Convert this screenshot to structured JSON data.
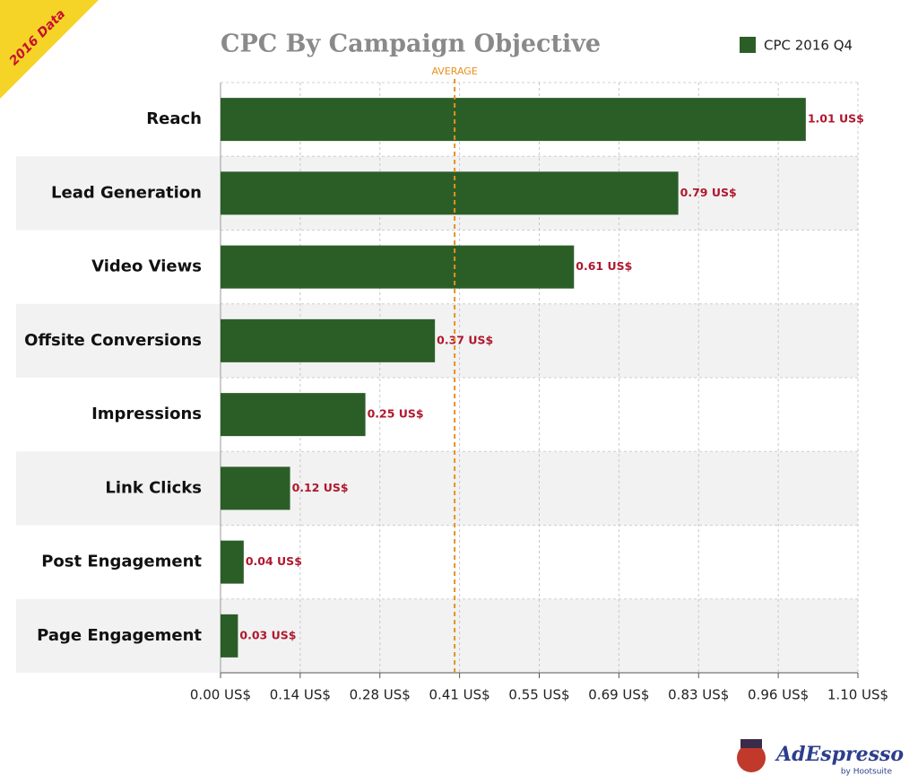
{
  "chart_data": {
    "type": "bar",
    "orientation": "horizontal",
    "title": "CPC By Campaign Objective",
    "categories": [
      "Reach",
      "Lead Generation",
      "Video Views",
      "Offsite Conversions",
      "Impressions",
      "Link Clicks",
      "Post Engagement",
      "Page Engagement"
    ],
    "series": [
      {
        "name": "CPC 2016 Q4",
        "color": "#2b5e27",
        "values": [
          1.01,
          0.79,
          0.61,
          0.37,
          0.25,
          0.12,
          0.04,
          0.03
        ],
        "value_labels": [
          "1.01 US$",
          "0.79 US$",
          "0.61 US$",
          "0.37 US$",
          "0.25 US$",
          "0.12 US$",
          "0.04 US$",
          "0.03 US$"
        ]
      }
    ],
    "xlim": [
      0,
      1.1
    ],
    "xticks": [
      {
        "value": 0,
        "label": "0.00 US$"
      },
      {
        "value": 0.1375,
        "label": "0.14 US$"
      },
      {
        "value": 0.275,
        "label": "0.28 US$"
      },
      {
        "value": 0.4125,
        "label": "0.41 US$"
      },
      {
        "value": 0.55,
        "label": "0.55 US$"
      },
      {
        "value": 0.6875,
        "label": "0.69 US$"
      },
      {
        "value": 0.825,
        "label": "0.83 US$"
      },
      {
        "value": 0.9625,
        "label": "0.96 US$"
      },
      {
        "value": 1.1,
        "label": "1.10 US$"
      }
    ],
    "grid": true,
    "legend": "top-right",
    "reference_line": {
      "label": "AVERAGE",
      "value": 0.404,
      "color": "#e8901c"
    }
  },
  "branding": {
    "badge": "2016 Data",
    "logo": "AdEspresso",
    "logo_sub": "by Hootsuite"
  }
}
